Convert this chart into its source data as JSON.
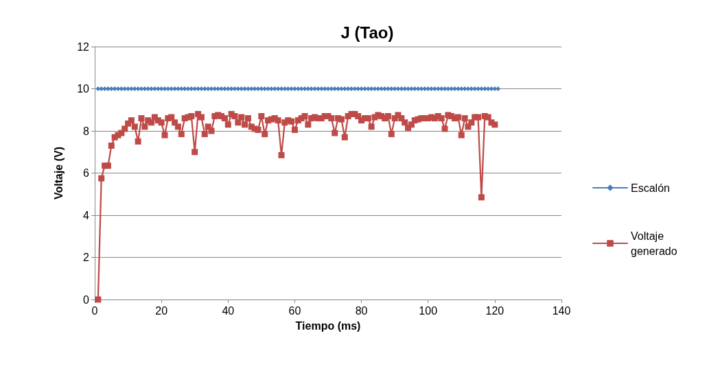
{
  "chart_data": {
    "type": "line",
    "title": "J (Tao)",
    "xlabel": "Tiempo (ms)",
    "ylabel": "Voltaje (V)",
    "xlim": [
      0,
      140
    ],
    "xticks": [
      0,
      20,
      40,
      60,
      80,
      100,
      120,
      140
    ],
    "ylim": [
      0,
      12
    ],
    "yticks": [
      0,
      2,
      4,
      6,
      8,
      10,
      12
    ],
    "grid": "y",
    "legend": "right",
    "series": [
      {
        "name": "Escalón",
        "color": "#4a7ebb",
        "marker": "diamond",
        "x": [
          1,
          2,
          3,
          4,
          5,
          6,
          7,
          8,
          9,
          10,
          11,
          12,
          13,
          14,
          15,
          16,
          17,
          18,
          19,
          20,
          21,
          22,
          23,
          24,
          25,
          26,
          27,
          28,
          29,
          30,
          31,
          32,
          33,
          34,
          35,
          36,
          37,
          38,
          39,
          40,
          41,
          42,
          43,
          44,
          45,
          46,
          47,
          48,
          49,
          50,
          51,
          52,
          53,
          54,
          55,
          56,
          57,
          58,
          59,
          60,
          61,
          62,
          63,
          64,
          65,
          66,
          67,
          68,
          69,
          70,
          71,
          72,
          73,
          74,
          75,
          76,
          77,
          78,
          79,
          80,
          81,
          82,
          83,
          84,
          85,
          86,
          87,
          88,
          89,
          90,
          91,
          92,
          93,
          94,
          95,
          96,
          97,
          98,
          99,
          100,
          101,
          102,
          103,
          104,
          105,
          106,
          107,
          108,
          109,
          110,
          111,
          112,
          113,
          114,
          115,
          116,
          117,
          118,
          119,
          120,
          121
        ],
        "values": [
          10,
          10,
          10,
          10,
          10,
          10,
          10,
          10,
          10,
          10,
          10,
          10,
          10,
          10,
          10,
          10,
          10,
          10,
          10,
          10,
          10,
          10,
          10,
          10,
          10,
          10,
          10,
          10,
          10,
          10,
          10,
          10,
          10,
          10,
          10,
          10,
          10,
          10,
          10,
          10,
          10,
          10,
          10,
          10,
          10,
          10,
          10,
          10,
          10,
          10,
          10,
          10,
          10,
          10,
          10,
          10,
          10,
          10,
          10,
          10,
          10,
          10,
          10,
          10,
          10,
          10,
          10,
          10,
          10,
          10,
          10,
          10,
          10,
          10,
          10,
          10,
          10,
          10,
          10,
          10,
          10,
          10,
          10,
          10,
          10,
          10,
          10,
          10,
          10,
          10,
          10,
          10,
          10,
          10,
          10,
          10,
          10,
          10,
          10,
          10,
          10,
          10,
          10,
          10,
          10,
          10,
          10,
          10,
          10,
          10,
          10,
          10,
          10,
          10,
          10,
          10,
          10,
          10,
          10,
          10,
          10
        ]
      },
      {
        "name": "Voltaje generado",
        "color": "#be4b48",
        "marker": "square",
        "x": [
          1,
          2,
          3,
          4,
          5,
          6,
          7,
          8,
          9,
          10,
          11,
          12,
          13,
          14,
          15,
          16,
          17,
          18,
          19,
          20,
          21,
          22,
          23,
          24,
          25,
          26,
          27,
          28,
          29,
          30,
          31,
          32,
          33,
          34,
          35,
          36,
          37,
          38,
          39,
          40,
          41,
          42,
          43,
          44,
          45,
          46,
          47,
          48,
          49,
          50,
          51,
          52,
          53,
          54,
          55,
          56,
          57,
          58,
          59,
          60,
          61,
          62,
          63,
          64,
          65,
          66,
          67,
          68,
          69,
          70,
          71,
          72,
          73,
          74,
          75,
          76,
          77,
          78,
          79,
          80,
          81,
          82,
          83,
          84,
          85,
          86,
          87,
          88,
          89,
          90,
          91,
          92,
          93,
          94,
          95,
          96,
          97,
          98,
          99,
          100,
          101,
          102,
          103,
          104,
          105,
          106,
          107,
          108,
          109,
          110,
          111,
          112,
          113,
          114,
          115,
          116,
          117,
          118,
          119,
          120
        ],
        "values": [
          0,
          5.75,
          6.35,
          6.35,
          7.3,
          7.7,
          7.8,
          7.9,
          8.1,
          8.35,
          8.5,
          8.2,
          7.5,
          8.6,
          8.2,
          8.5,
          8.4,
          8.65,
          8.5,
          8.4,
          7.8,
          8.6,
          8.65,
          8.4,
          8.2,
          7.85,
          8.6,
          8.65,
          8.7,
          7.0,
          8.8,
          8.65,
          7.85,
          8.2,
          8.0,
          8.7,
          8.75,
          8.7,
          8.6,
          8.3,
          8.8,
          8.7,
          8.4,
          8.65,
          8.3,
          8.6,
          8.2,
          8.1,
          8.05,
          8.7,
          7.85,
          8.5,
          8.55,
          8.6,
          8.5,
          6.85,
          8.4,
          8.5,
          8.45,
          8.05,
          8.5,
          8.6,
          8.7,
          8.3,
          8.6,
          8.65,
          8.6,
          8.6,
          8.7,
          8.7,
          8.6,
          7.9,
          8.6,
          8.55,
          7.7,
          8.7,
          8.8,
          8.8,
          8.7,
          8.5,
          8.6,
          8.6,
          8.2,
          8.65,
          8.75,
          8.7,
          8.6,
          8.7,
          7.85,
          8.6,
          8.75,
          8.6,
          8.4,
          8.15,
          8.3,
          8.5,
          8.55,
          8.6,
          8.6,
          8.6,
          8.65,
          8.6,
          8.7,
          8.6,
          8.1,
          8.75,
          8.7,
          8.6,
          8.65,
          7.8,
          8.6,
          8.2,
          8.4,
          8.65,
          8.65,
          4.85,
          8.7,
          8.65,
          8.4,
          8.3
        ]
      }
    ]
  }
}
